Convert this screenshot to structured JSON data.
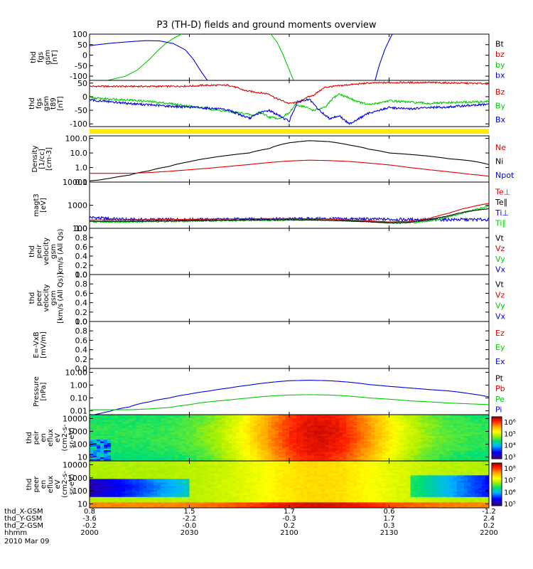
{
  "title": "P3 (TH-D) fields and ground moments overview",
  "colors": {
    "black": "#000000",
    "red": "#dd0000",
    "green": "#00cc00",
    "blue": "#0000dd",
    "yellow": "#ffee00"
  },
  "chart_data": [
    {
      "type": "line",
      "id": "fgs",
      "ylabel": [
        "thd",
        "fgs",
        "gsm",
        "[nT]"
      ],
      "ylim": [
        -120,
        100
      ],
      "yticks": [
        100,
        50,
        0,
        -50,
        -100
      ],
      "log": false,
      "legend": [
        {
          "name": "Bt",
          "color": "#000000"
        },
        {
          "name": "bz",
          "color": "#dd0000"
        },
        {
          "name": "by",
          "color": "#00cc00"
        },
        {
          "name": "bx",
          "color": "#0000dd"
        }
      ],
      "series": [
        {
          "name": "by",
          "color": "#00cc00",
          "x": [
            2000,
            2010,
            2018,
            2024,
            2030,
            2034,
            2038,
            2042,
            2046,
            2049
          ],
          "y": [
            -140,
            -118,
            -100,
            -70,
            -20,
            20,
            55,
            80,
            100,
            110
          ]
        },
        {
          "name": "by",
          "color": "#00cc00",
          "x": [
            2090,
            2094,
            2097,
            2100,
            2103
          ],
          "y": [
            110,
            60,
            0,
            -70,
            -140
          ]
        },
        {
          "name": "bx",
          "color": "#0000dd",
          "x": [
            2000,
            2006,
            2012,
            2020,
            2028,
            2035,
            2042,
            2048,
            2052,
            2056,
            2059
          ],
          "y": [
            45,
            52,
            58,
            64,
            69,
            68,
            55,
            25,
            -20,
            -80,
            -120
          ]
        },
        {
          "name": "bx",
          "color": "#0000dd",
          "x": [
            2143,
            2145,
            2148,
            2151,
            2153
          ],
          "y": [
            -120,
            -50,
            30,
            90,
            120
          ]
        }
      ]
    },
    {
      "type": "line",
      "id": "fgs_nt",
      "ylabel": [
        "thd",
        "fgs",
        "gsm",
        "t89",
        "[nT]"
      ],
      "ylim": [
        -110,
        60
      ],
      "yticks": [
        50,
        0,
        -50,
        -100
      ],
      "log": false,
      "legend": [
        {
          "name": "Bz",
          "color": "#dd0000"
        },
        {
          "name": "By",
          "color": "#00cc00"
        },
        {
          "name": "Bx",
          "color": "#0000dd"
        }
      ],
      "series": [
        {
          "name": "Bz",
          "color": "#dd0000",
          "noise": 3,
          "x": [
            2000,
            2020,
            2040,
            2055,
            2056,
            2070,
            2075,
            2078,
            2085,
            2090,
            2093,
            2100,
            2105,
            2108,
            2112,
            2115,
            2118,
            2125,
            2130,
            2140,
            2150,
            2170,
            2200
          ],
          "y": [
            38,
            38,
            38,
            40,
            42,
            42,
            30,
            22,
            15,
            10,
            -5,
            -25,
            -20,
            -5,
            5,
            20,
            35,
            40,
            44,
            50,
            52,
            52,
            48
          ]
        },
        {
          "name": "By",
          "color": "#00cc00",
          "noise": 4,
          "x": [
            2000,
            2010,
            2020,
            2030,
            2040,
            2050,
            2060,
            2070,
            2078,
            2082,
            2085,
            2090,
            2095,
            2100,
            2103,
            2107,
            2112,
            2118,
            2122,
            2125,
            2130,
            2135,
            2140,
            2150,
            2160,
            2170,
            2180,
            2190,
            2200
          ],
          "y": [
            -5,
            -8,
            -12,
            -18,
            -25,
            -35,
            -45,
            -55,
            -62,
            -70,
            -55,
            -75,
            -80,
            -60,
            -30,
            -35,
            -50,
            -40,
            -5,
            10,
            -5,
            -20,
            -30,
            -15,
            -20,
            -25,
            -22,
            -20,
            -18
          ]
        },
        {
          "name": "Bx",
          "color": "#0000dd",
          "noise": 4,
          "x": [
            2000,
            2010,
            2020,
            2030,
            2040,
            2050,
            2060,
            2070,
            2080,
            2085,
            2090,
            2095,
            2100,
            2104,
            2110,
            2115,
            2120,
            2125,
            2130,
            2140,
            2150,
            2160,
            2170,
            2180,
            2190,
            2200
          ],
          "y": [
            -12,
            -18,
            -25,
            -30,
            -35,
            -38,
            -42,
            -50,
            -80,
            -60,
            -50,
            -70,
            -90,
            -20,
            -10,
            -50,
            -80,
            -70,
            -100,
            -60,
            -40,
            -45,
            -40,
            -38,
            -32,
            -28
          ]
        }
      ]
    },
    {
      "type": "bar",
      "id": "flag",
      "ylabel": [],
      "color": "#ffee00"
    },
    {
      "type": "line",
      "id": "density",
      "ylabel": [
        "Density",
        "[1/cc]",
        "[cm-3]"
      ],
      "ylim": [
        0.1,
        150
      ],
      "yticks": [
        100.0,
        10.0,
        1.0,
        0.1
      ],
      "log": true,
      "ytick_labels": [
        "100.0",
        "10.0",
        "1.0",
        "0.1"
      ],
      "legend": [
        {
          "name": "Ne",
          "color": "#dd0000"
        },
        {
          "name": "Ni",
          "color": "#000000"
        },
        {
          "name": "Npot",
          "color": "#0000dd"
        }
      ],
      "series": [
        {
          "name": "Ni",
          "color": "#000000",
          "noise": 0,
          "x": [
            2000,
            2005,
            2010,
            2020,
            2030,
            2040,
            2050,
            2060,
            2070,
            2080,
            2090,
            2100,
            2110,
            2120,
            2130,
            2140,
            2150,
            2160,
            2170,
            2180,
            2190,
            2200
          ],
          "y": [
            0.12,
            0.14,
            0.18,
            0.3,
            0.6,
            1.2,
            2.5,
            4.5,
            7,
            10,
            20,
            50,
            70,
            60,
            35,
            18,
            10,
            8,
            6,
            4,
            3,
            1.6
          ]
        },
        {
          "name": "Ne",
          "color": "#dd0000",
          "noise": 0,
          "x": [
            2000,
            2020,
            2030,
            2040,
            2050,
            2060,
            2070,
            2080,
            2090,
            2100,
            2110,
            2120,
            2130,
            2140,
            2150,
            2160,
            2170,
            2180,
            2190,
            2200
          ],
          "y": [
            0.4,
            0.4,
            0.45,
            0.55,
            0.7,
            0.9,
            1.2,
            1.6,
            2.2,
            2.8,
            3.2,
            3.0,
            2.6,
            2.0,
            1.5,
            1.0,
            0.7,
            0.5,
            0.35,
            0.25
          ]
        }
      ]
    },
    {
      "type": "line",
      "id": "temp",
      "ylabel": [
        "magt3",
        "[eV]"
      ],
      "ylim": [
        100,
        10000
      ],
      "yticks": [
        10000,
        1000,
        100
      ],
      "log": true,
      "ytick_labels": [
        "10000",
        "1000",
        "100"
      ],
      "legend": [
        {
          "name": "Te⊥",
          "color": "#dd0000"
        },
        {
          "name": "Te∥",
          "color": "#000000"
        },
        {
          "name": "Ti⊥",
          "color": "#0000dd"
        },
        {
          "name": "Ti∥",
          "color": "#00cc00"
        }
      ],
      "series": [
        {
          "name": "Ti⊥",
          "color": "#0000dd",
          "noise": 0.15,
          "x": [
            2000,
            2005,
            2010,
            2020,
            2040,
            2060,
            2080,
            2100,
            2120,
            2140,
            2160,
            2180,
            2200
          ],
          "y": [
            300,
            280,
            260,
            240,
            240,
            240,
            250,
            255,
            260,
            250,
            240,
            240,
            240
          ]
        },
        {
          "name": "Ti∥",
          "color": "#00cc00",
          "noise": 0.08,
          "x": [
            2000,
            2020,
            2040,
            2060,
            2080,
            2100,
            2120,
            2140,
            2155,
            2165,
            2175,
            2185,
            2195,
            2200
          ],
          "y": [
            190,
            190,
            200,
            210,
            220,
            230,
            240,
            200,
            170,
            180,
            240,
            400,
            700,
            900
          ]
        },
        {
          "name": "Te∥",
          "color": "#000000",
          "noise": 0.02,
          "x": [
            2000,
            2020,
            2040,
            2060,
            2080,
            2100,
            2120,
            2140,
            2150,
            2160,
            2170,
            2180,
            2190,
            2200
          ],
          "y": [
            200,
            200,
            210,
            220,
            230,
            235,
            220,
            190,
            170,
            180,
            230,
            350,
            550,
            700
          ]
        },
        {
          "name": "Te⊥",
          "color": "#dd0000",
          "noise": 0.02,
          "x": [
            2000,
            2020,
            2040,
            2060,
            2080,
            2100,
            2120,
            2140,
            2150,
            2160,
            2170,
            2180,
            2190,
            2200
          ],
          "y": [
            230,
            230,
            240,
            250,
            260,
            265,
            250,
            210,
            190,
            200,
            260,
            450,
            800,
            1200
          ]
        }
      ]
    },
    {
      "type": "line",
      "id": "vpeir",
      "ylabel": [
        "thd",
        "peir",
        "velocity",
        "gsm",
        "km/s (All Qs)"
      ],
      "ylim": [
        0,
        1
      ],
      "yticks": [
        1.0,
        0.8,
        0.6,
        0.4,
        0.2,
        0.0
      ],
      "log": false,
      "ytick_labels": [
        "1.0",
        "0.8",
        "0.6",
        "0.4",
        "0.2",
        "0.0"
      ],
      "legend": [
        {
          "name": "Vt",
          "color": "#000000"
        },
        {
          "name": "Vz",
          "color": "#dd0000"
        },
        {
          "name": "Vy",
          "color": "#00cc00"
        },
        {
          "name": "Vx",
          "color": "#0000dd"
        }
      ],
      "series": []
    },
    {
      "type": "line",
      "id": "vpeer",
      "ylabel": [
        "thd",
        "peer",
        "velocity",
        "gsm",
        "[km/s (All Qs)]"
      ],
      "ylim": [
        0,
        1
      ],
      "yticks": [
        1.0,
        0.8,
        0.6,
        0.4,
        0.2,
        0.0
      ],
      "log": false,
      "ytick_labels": [
        "1.0",
        "0.8",
        "0.6",
        "0.4",
        "0.2",
        "0.0"
      ],
      "legend": [
        {
          "name": "Vt",
          "color": "#000000"
        },
        {
          "name": "Vz",
          "color": "#dd0000"
        },
        {
          "name": "Vy",
          "color": "#00cc00"
        },
        {
          "name": "Vx",
          "color": "#0000dd"
        }
      ],
      "series": []
    },
    {
      "type": "line",
      "id": "efield",
      "ylabel": [
        "E=-VxB",
        "[mV/m]"
      ],
      "ylim": [
        0,
        1
      ],
      "yticks": [
        1.0,
        0.8,
        0.6,
        0.4,
        0.2,
        0.0
      ],
      "log": false,
      "ytick_labels": [
        "1.0",
        "0.8",
        "0.6",
        "0.4",
        "0.2",
        "0.0"
      ],
      "legend": [
        {
          "name": "Ez",
          "color": "#dd0000"
        },
        {
          "name": "Ey",
          "color": "#00cc00"
        },
        {
          "name": "Ex",
          "color": "#0000dd"
        }
      ],
      "series": []
    },
    {
      "type": "line",
      "id": "pressure",
      "ylabel": [
        "Pressure",
        "[nPa]"
      ],
      "ylim": [
        0.005,
        20
      ],
      "yticks": [
        10.0,
        1.0,
        0.1,
        0.01
      ],
      "log": true,
      "ytick_labels": [
        "10.00",
        "1.00",
        "0.10",
        "0.01"
      ],
      "legend": [
        {
          "name": "Pt",
          "color": "#000000"
        },
        {
          "name": "Pb",
          "color": "#dd0000"
        },
        {
          "name": "Pe",
          "color": "#00cc00"
        },
        {
          "name": "Pi",
          "color": "#0000dd"
        }
      ],
      "series": [
        {
          "name": "Pi",
          "color": "#0000dd",
          "noise": 0,
          "x": [
            2000,
            2005,
            2010,
            2020,
            2030,
            2040,
            2050,
            2060,
            2070,
            2080,
            2090,
            2100,
            2110,
            2120,
            2130,
            2140,
            2150,
            2160,
            2170,
            2180,
            2190,
            2200
          ],
          "y": [
            0.004,
            0.006,
            0.009,
            0.02,
            0.05,
            0.1,
            0.2,
            0.35,
            0.6,
            1.0,
            1.6,
            2.2,
            2.4,
            2.2,
            1.7,
            1.1,
            0.8,
            0.6,
            0.45,
            0.35,
            0.22,
            0.12
          ]
        },
        {
          "name": "Pe",
          "color": "#00cc00",
          "noise": 0,
          "x": [
            2000,
            2020,
            2030,
            2040,
            2050,
            2060,
            2070,
            2080,
            2090,
            2100,
            2110,
            2120,
            2130,
            2140,
            2150,
            2160,
            2170,
            2180,
            2190,
            2200
          ],
          "y": [
            0.012,
            0.012,
            0.014,
            0.018,
            0.03,
            0.05,
            0.07,
            0.1,
            0.14,
            0.17,
            0.18,
            0.17,
            0.14,
            0.1,
            0.08,
            0.06,
            0.05,
            0.04,
            0.035,
            0.03
          ]
        }
      ]
    },
    {
      "type": "heatmap",
      "id": "peir_en",
      "ylabel": [
        "thd",
        "peir",
        "en",
        "eflux",
        "eV",
        "(cm2-s-",
        "sr-eV)"
      ],
      "ylim": [
        5,
        20000
      ],
      "yticks": [
        10000,
        1000,
        100,
        10
      ],
      "log": true,
      "ytick_labels": [
        "10000",
        "1000",
        "100",
        "10"
      ],
      "colorbar": {
        "range": [
          1000,
          1000000
        ],
        "labels": [
          "10⁶",
          "10⁵",
          "10⁴",
          "10³"
        ]
      }
    },
    {
      "type": "heatmap",
      "id": "peer_en",
      "ylabel": [
        "thd",
        "peer",
        "en",
        "eflux",
        "eV",
        "(cm2-s-",
        "sr-eV)"
      ],
      "ylim": [
        5,
        20000
      ],
      "yticks": [
        10000,
        1000,
        100,
        10
      ],
      "log": true,
      "ytick_labels": [
        "10000",
        "1000",
        "100",
        "10"
      ],
      "colorbar": {
        "range": [
          50000,
          100000000
        ],
        "labels": [
          "10⁸",
          "10⁷",
          "10⁶",
          "10⁵"
        ]
      }
    }
  ],
  "xaxis": {
    "range": [
      2000,
      2200
    ],
    "tick_positions": [
      2000,
      2050,
      2100,
      2150,
      2200
    ],
    "rows": [
      {
        "label": "thd_X-GSM",
        "values": [
          "0.8",
          "1.5",
          "1.7",
          "0.6",
          "-1.2"
        ]
      },
      {
        "label": "thd_Y-GSM",
        "values": [
          "-3.6",
          "-2.2",
          "-0.3",
          "1.7",
          "2.4"
        ]
      },
      {
        "label": "thd_Z-GSM",
        "values": [
          "-0.2",
          "-0.0",
          "0.2",
          "0.3",
          "0.2"
        ]
      },
      {
        "label": "hhmm",
        "values": [
          "2000",
          "2030",
          "2100",
          "2130",
          "2200"
        ]
      }
    ],
    "date": "2010 Mar 09"
  }
}
